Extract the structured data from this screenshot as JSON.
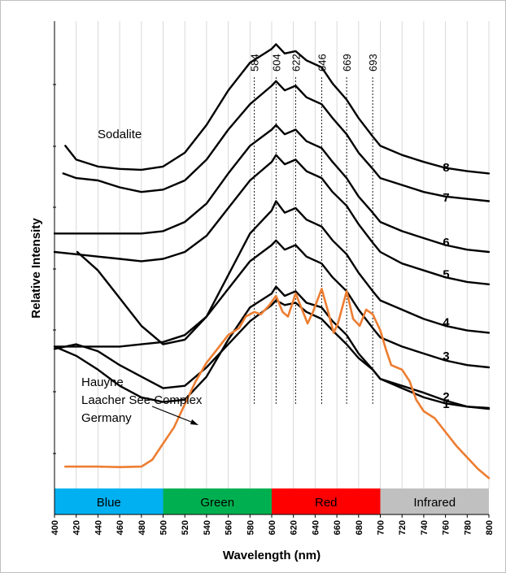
{
  "chart_data": {
    "type": "line",
    "title": "",
    "xlabel": "Wavelength (nm)",
    "ylabel": "Relative Intensity",
    "xlim": [
      400,
      800
    ],
    "ylim": [
      0,
      10
    ],
    "grid": "vertical",
    "x_ticks": [
      400,
      420,
      440,
      460,
      480,
      500,
      520,
      540,
      560,
      580,
      600,
      620,
      640,
      660,
      680,
      700,
      720,
      740,
      760,
      780,
      800
    ],
    "peak_markers": [
      {
        "label": "584",
        "x": 584
      },
      {
        "label": "604",
        "x": 604
      },
      {
        "label": "622",
        "x": 622
      },
      {
        "label": "646",
        "x": 646
      },
      {
        "label": "669",
        "x": 669
      },
      {
        "label": "693",
        "x": 693
      }
    ],
    "color_bands": [
      {
        "label": "Blue",
        "from": 400,
        "to": 500,
        "color": "#00b0f0"
      },
      {
        "label": "Green",
        "from": 500,
        "to": 600,
        "color": "#00b050"
      },
      {
        "label": "Red",
        "from": 600,
        "to": 700,
        "color": "#ff0000"
      },
      {
        "label": "Infrared",
        "from": 700,
        "to": 800,
        "color": "#c0c0c0"
      }
    ],
    "annotations": [
      {
        "text": "Sodalite"
      },
      {
        "text": "Hauyne"
      },
      {
        "text": "Laacher See Complex"
      },
      {
        "text": "Germany"
      }
    ],
    "series": [
      {
        "name": "1",
        "color": "#000000",
        "x": [
          400,
          420,
          440,
          460,
          480,
          500,
          520,
          540,
          560,
          580,
          600,
          604,
          612,
          622,
          632,
          646,
          656,
          669,
          680,
          693,
          700,
          720,
          740,
          760,
          780,
          800
        ],
        "y": [
          2.9,
          3.0,
          2.85,
          2.55,
          2.3,
          2.05,
          2.1,
          2.5,
          3.0,
          3.5,
          3.85,
          3.95,
          3.85,
          3.9,
          3.7,
          3.55,
          3.3,
          3.0,
          2.7,
          2.45,
          2.25,
          2.05,
          1.85,
          1.72,
          1.65,
          1.62
        ]
      },
      {
        "name": "2",
        "color": "#000000",
        "x": [
          400,
          420,
          440,
          460,
          480,
          500,
          520,
          540,
          560,
          580,
          600,
          604,
          612,
          622,
          632,
          646,
          656,
          669,
          680,
          693,
          700,
          720,
          740,
          760,
          780,
          800
        ],
        "y": [
          2.95,
          2.75,
          2.45,
          2.1,
          1.85,
          1.75,
          1.8,
          2.3,
          3.1,
          3.8,
          4.1,
          4.25,
          4.05,
          4.15,
          3.9,
          3.8,
          3.5,
          3.2,
          2.8,
          2.45,
          2.25,
          2.1,
          1.95,
          1.78,
          1.65,
          1.6
        ]
      },
      {
        "name": "3",
        "color": "#000000",
        "x": [
          400,
          420,
          440,
          460,
          480,
          500,
          520,
          540,
          560,
          580,
          600,
          604,
          612,
          622,
          632,
          646,
          656,
          669,
          680,
          693,
          700,
          720,
          740,
          760,
          780,
          800
        ],
        "y": [
          2.95,
          2.95,
          2.95,
          2.95,
          3.0,
          3.05,
          3.2,
          3.6,
          4.2,
          4.8,
          5.15,
          5.25,
          5.05,
          5.15,
          4.9,
          4.75,
          4.45,
          4.15,
          3.75,
          3.35,
          3.15,
          2.95,
          2.8,
          2.65,
          2.55,
          2.5
        ]
      },
      {
        "name": "4",
        "color": "#000000",
        "x": [
          421,
          440,
          460,
          480,
          500,
          520,
          540,
          560,
          580,
          600,
          604,
          612,
          622,
          632,
          646,
          656,
          669,
          680,
          693,
          700,
          720,
          740,
          760,
          780,
          800
        ],
        "y": [
          5.0,
          4.6,
          4.0,
          3.4,
          3.0,
          3.1,
          3.6,
          4.5,
          5.4,
          5.9,
          6.1,
          5.85,
          5.95,
          5.7,
          5.55,
          5.25,
          4.95,
          4.55,
          4.15,
          3.95,
          3.75,
          3.55,
          3.4,
          3.3,
          3.25
        ]
      },
      {
        "name": "5",
        "color": "#000000",
        "x": [
          400,
          420,
          440,
          460,
          480,
          500,
          520,
          540,
          560,
          580,
          600,
          604,
          612,
          622,
          632,
          646,
          656,
          669,
          680,
          693,
          700,
          720,
          740,
          760,
          780,
          800
        ],
        "y": [
          5.0,
          4.95,
          4.9,
          4.85,
          4.8,
          4.85,
          5.0,
          5.35,
          5.95,
          6.55,
          6.95,
          7.1,
          6.9,
          7.0,
          6.75,
          6.6,
          6.3,
          6.0,
          5.6,
          5.2,
          5.0,
          4.75,
          4.6,
          4.45,
          4.35,
          4.3
        ]
      },
      {
        "name": "6",
        "color": "#000000",
        "x": [
          400,
          420,
          440,
          460,
          480,
          500,
          520,
          540,
          560,
          580,
          600,
          604,
          612,
          622,
          632,
          646,
          656,
          669,
          680,
          693,
          700,
          720,
          740,
          760,
          780,
          800
        ],
        "y": [
          5.4,
          5.4,
          5.4,
          5.4,
          5.4,
          5.45,
          5.65,
          6.05,
          6.7,
          7.3,
          7.65,
          7.75,
          7.55,
          7.65,
          7.4,
          7.25,
          6.95,
          6.6,
          6.2,
          5.85,
          5.65,
          5.45,
          5.3,
          5.15,
          5.05,
          5.0
        ]
      },
      {
        "name": "7",
        "color": "#000000",
        "x": [
          408,
          420,
          440,
          460,
          480,
          500,
          520,
          540,
          560,
          580,
          600,
          604,
          612,
          622,
          632,
          646,
          656,
          669,
          680,
          693,
          700,
          720,
          740,
          760,
          780,
          800
        ],
        "y": [
          6.7,
          6.6,
          6.55,
          6.4,
          6.3,
          6.35,
          6.55,
          7.0,
          7.65,
          8.2,
          8.6,
          8.7,
          8.5,
          8.6,
          8.35,
          8.2,
          7.9,
          7.55,
          7.15,
          6.8,
          6.6,
          6.45,
          6.3,
          6.2,
          6.15,
          6.1
        ]
      },
      {
        "name": "8",
        "color": "#000000",
        "x": [
          410,
          420,
          440,
          460,
          480,
          500,
          520,
          540,
          560,
          580,
          600,
          604,
          612,
          622,
          632,
          646,
          656,
          669,
          680,
          693,
          700,
          720,
          740,
          760,
          780,
          800
        ],
        "y": [
          7.3,
          7.0,
          6.85,
          6.8,
          6.78,
          6.85,
          7.15,
          7.75,
          8.5,
          9.1,
          9.4,
          9.5,
          9.3,
          9.35,
          9.15,
          9.0,
          8.65,
          8.3,
          7.9,
          7.5,
          7.3,
          7.1,
          6.95,
          6.82,
          6.75,
          6.7
        ]
      },
      {
        "name": "",
        "color": "#ed7d31",
        "x": [
          410,
          420,
          440,
          460,
          480,
          490,
          500,
          510,
          520,
          530,
          540,
          550,
          560,
          570,
          576,
          584,
          590,
          598,
          604,
          610,
          615,
          622,
          628,
          633,
          638,
          646,
          652,
          657,
          661,
          669,
          675,
          681,
          687,
          693,
          700,
          705,
          710,
          715,
          720,
          727,
          733,
          740,
          750,
          760,
          770,
          780,
          790,
          800
        ],
        "y": [
          0.35,
          0.35,
          0.35,
          0.34,
          0.35,
          0.5,
          0.85,
          1.2,
          1.7,
          2.2,
          2.6,
          2.9,
          3.2,
          3.35,
          3.6,
          3.7,
          3.65,
          3.85,
          4.05,
          3.7,
          3.6,
          4.1,
          3.75,
          3.45,
          3.7,
          4.2,
          3.7,
          3.25,
          3.45,
          4.15,
          3.55,
          3.4,
          3.75,
          3.65,
          3.3,
          2.9,
          2.55,
          2.5,
          2.45,
          2.2,
          1.8,
          1.55,
          1.4,
          1.1,
          0.8,
          0.55,
          0.3,
          0.1
        ]
      }
    ]
  }
}
